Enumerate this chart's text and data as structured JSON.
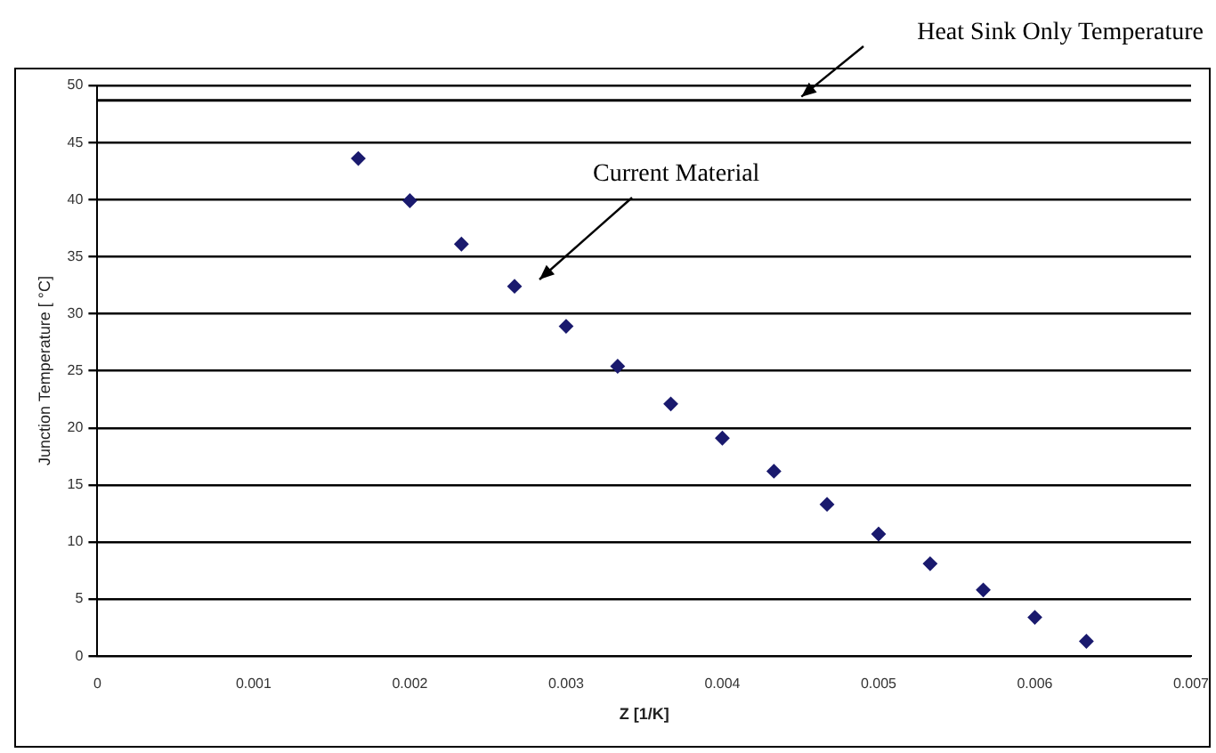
{
  "chart_data": {
    "type": "scatter",
    "xlabel": "Z [1/K]",
    "ylabel": "Junction Temperature [ °C]",
    "x": [
      0.00167,
      0.002,
      0.00233,
      0.00267,
      0.003,
      0.00333,
      0.00367,
      0.004,
      0.00433,
      0.00467,
      0.005,
      0.00533,
      0.00567,
      0.006,
      0.00633
    ],
    "series": [
      {
        "color": "#1a1a6e",
        "values": [
          43.6,
          39.9,
          36.1,
          32.4,
          28.9,
          25.4,
          22.1,
          19.1,
          16.2,
          13.3,
          10.7,
          8.1,
          5.8,
          3.4,
          1.3
        ]
      }
    ],
    "xlim": [
      0,
      0.007
    ],
    "xticks": [
      0,
      0.001,
      0.002,
      0.003,
      0.004,
      0.005,
      0.006,
      0.007
    ],
    "ylim": [
      0,
      50
    ],
    "yticks": [
      0,
      5,
      10,
      15,
      20,
      25,
      30,
      35,
      40,
      45,
      50
    ],
    "grid": "y",
    "legend": false,
    "marker": "diamond",
    "ref_lines": [
      {
        "axis": "y",
        "value": 48.7,
        "label": "Heat Sink Only Temperature",
        "color": "#000000"
      }
    ],
    "annotations": [
      "Current Material"
    ]
  }
}
